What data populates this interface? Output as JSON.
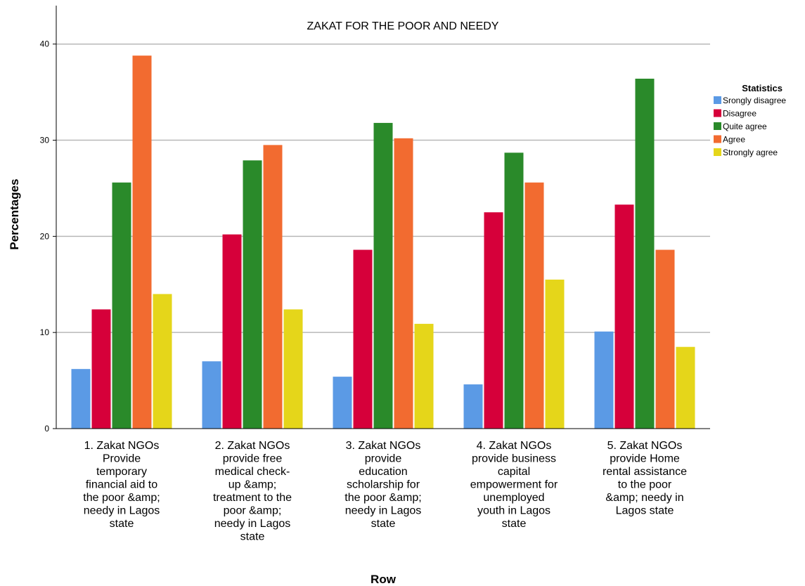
{
  "chart_data": {
    "type": "bar",
    "title": "ZAKAT FOR THE POOR AND NEEDY",
    "xlabel": "Row",
    "ylabel": "Percentages",
    "ylim": [
      0,
      44
    ],
    "yticks": [
      0,
      10,
      20,
      30,
      40
    ],
    "grid": true,
    "legend_position": "right",
    "legend_title": "Statistics",
    "categories": [
      [
        "1. Zakat NGOs",
        "Provide",
        "temporary",
        "financial aid to",
        "the poor &amp;",
        "needy in Lagos",
        "state"
      ],
      [
        "2. Zakat NGOs",
        "provide free",
        "medical check-",
        "up &amp;",
        "treatment to the",
        "poor &amp;",
        "needy in Lagos",
        "state"
      ],
      [
        "3. Zakat NGOs",
        "provide",
        "education",
        "scholarship for",
        "the poor &amp;",
        "needy in Lagos",
        "state"
      ],
      [
        "4. Zakat NGOs",
        "provide business",
        "capital",
        "empowerment for",
        "unemployed",
        "youth in Lagos",
        "state"
      ],
      [
        "5. Zakat NGOs",
        "provide Home",
        "rental assistance",
        "to the poor",
        "&amp; needy in",
        "Lagos state"
      ]
    ],
    "series": [
      {
        "name": "Srongly disagree",
        "color": "#5b9ae5",
        "values": [
          6.2,
          7.0,
          5.4,
          4.6,
          10.1
        ]
      },
      {
        "name": "Disagree",
        "color": "#d6003a",
        "values": [
          12.4,
          20.2,
          18.6,
          22.5,
          23.3
        ]
      },
      {
        "name": "Quite agree",
        "color": "#2a8a2a",
        "values": [
          25.6,
          27.9,
          31.8,
          28.7,
          36.4
        ]
      },
      {
        "name": "Agree",
        "color": "#f26b30",
        "values": [
          38.8,
          29.5,
          30.2,
          25.6,
          18.6
        ]
      },
      {
        "name": "Strongly agree",
        "color": "#e5d61a",
        "values": [
          14.0,
          12.4,
          10.9,
          15.5,
          8.5
        ]
      }
    ]
  }
}
